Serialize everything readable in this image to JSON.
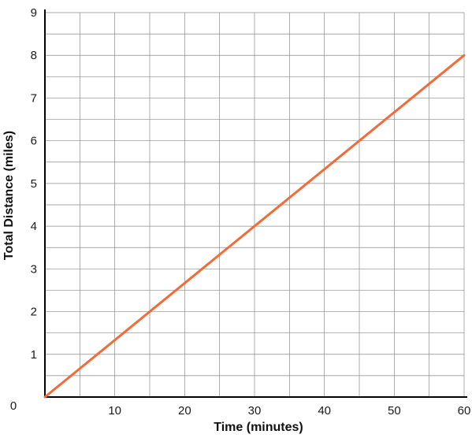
{
  "chart_data": {
    "type": "line",
    "title": "",
    "xlabel": "Time (minutes)",
    "ylabel": "Total Distance (miles)",
    "xlim": [
      0,
      60
    ],
    "ylim": [
      0,
      9
    ],
    "origin_label": "0",
    "x_ticks": [
      10,
      20,
      30,
      40,
      50,
      60
    ],
    "x_tick_labels": [
      "10",
      "20",
      "30",
      "40",
      "50",
      "60"
    ],
    "y_ticks": [
      1,
      2,
      3,
      4,
      5,
      6,
      7,
      8,
      9
    ],
    "y_tick_labels": [
      "1",
      "2",
      "3",
      "4",
      "5",
      "6",
      "7",
      "8",
      "9"
    ],
    "x_minor_step": 5,
    "y_minor_step": 0.5,
    "grid": true,
    "legend": "none",
    "series": [
      {
        "x": [
          0,
          60
        ],
        "y": [
          0,
          8
        ],
        "color": "#f26b38"
      }
    ]
  }
}
